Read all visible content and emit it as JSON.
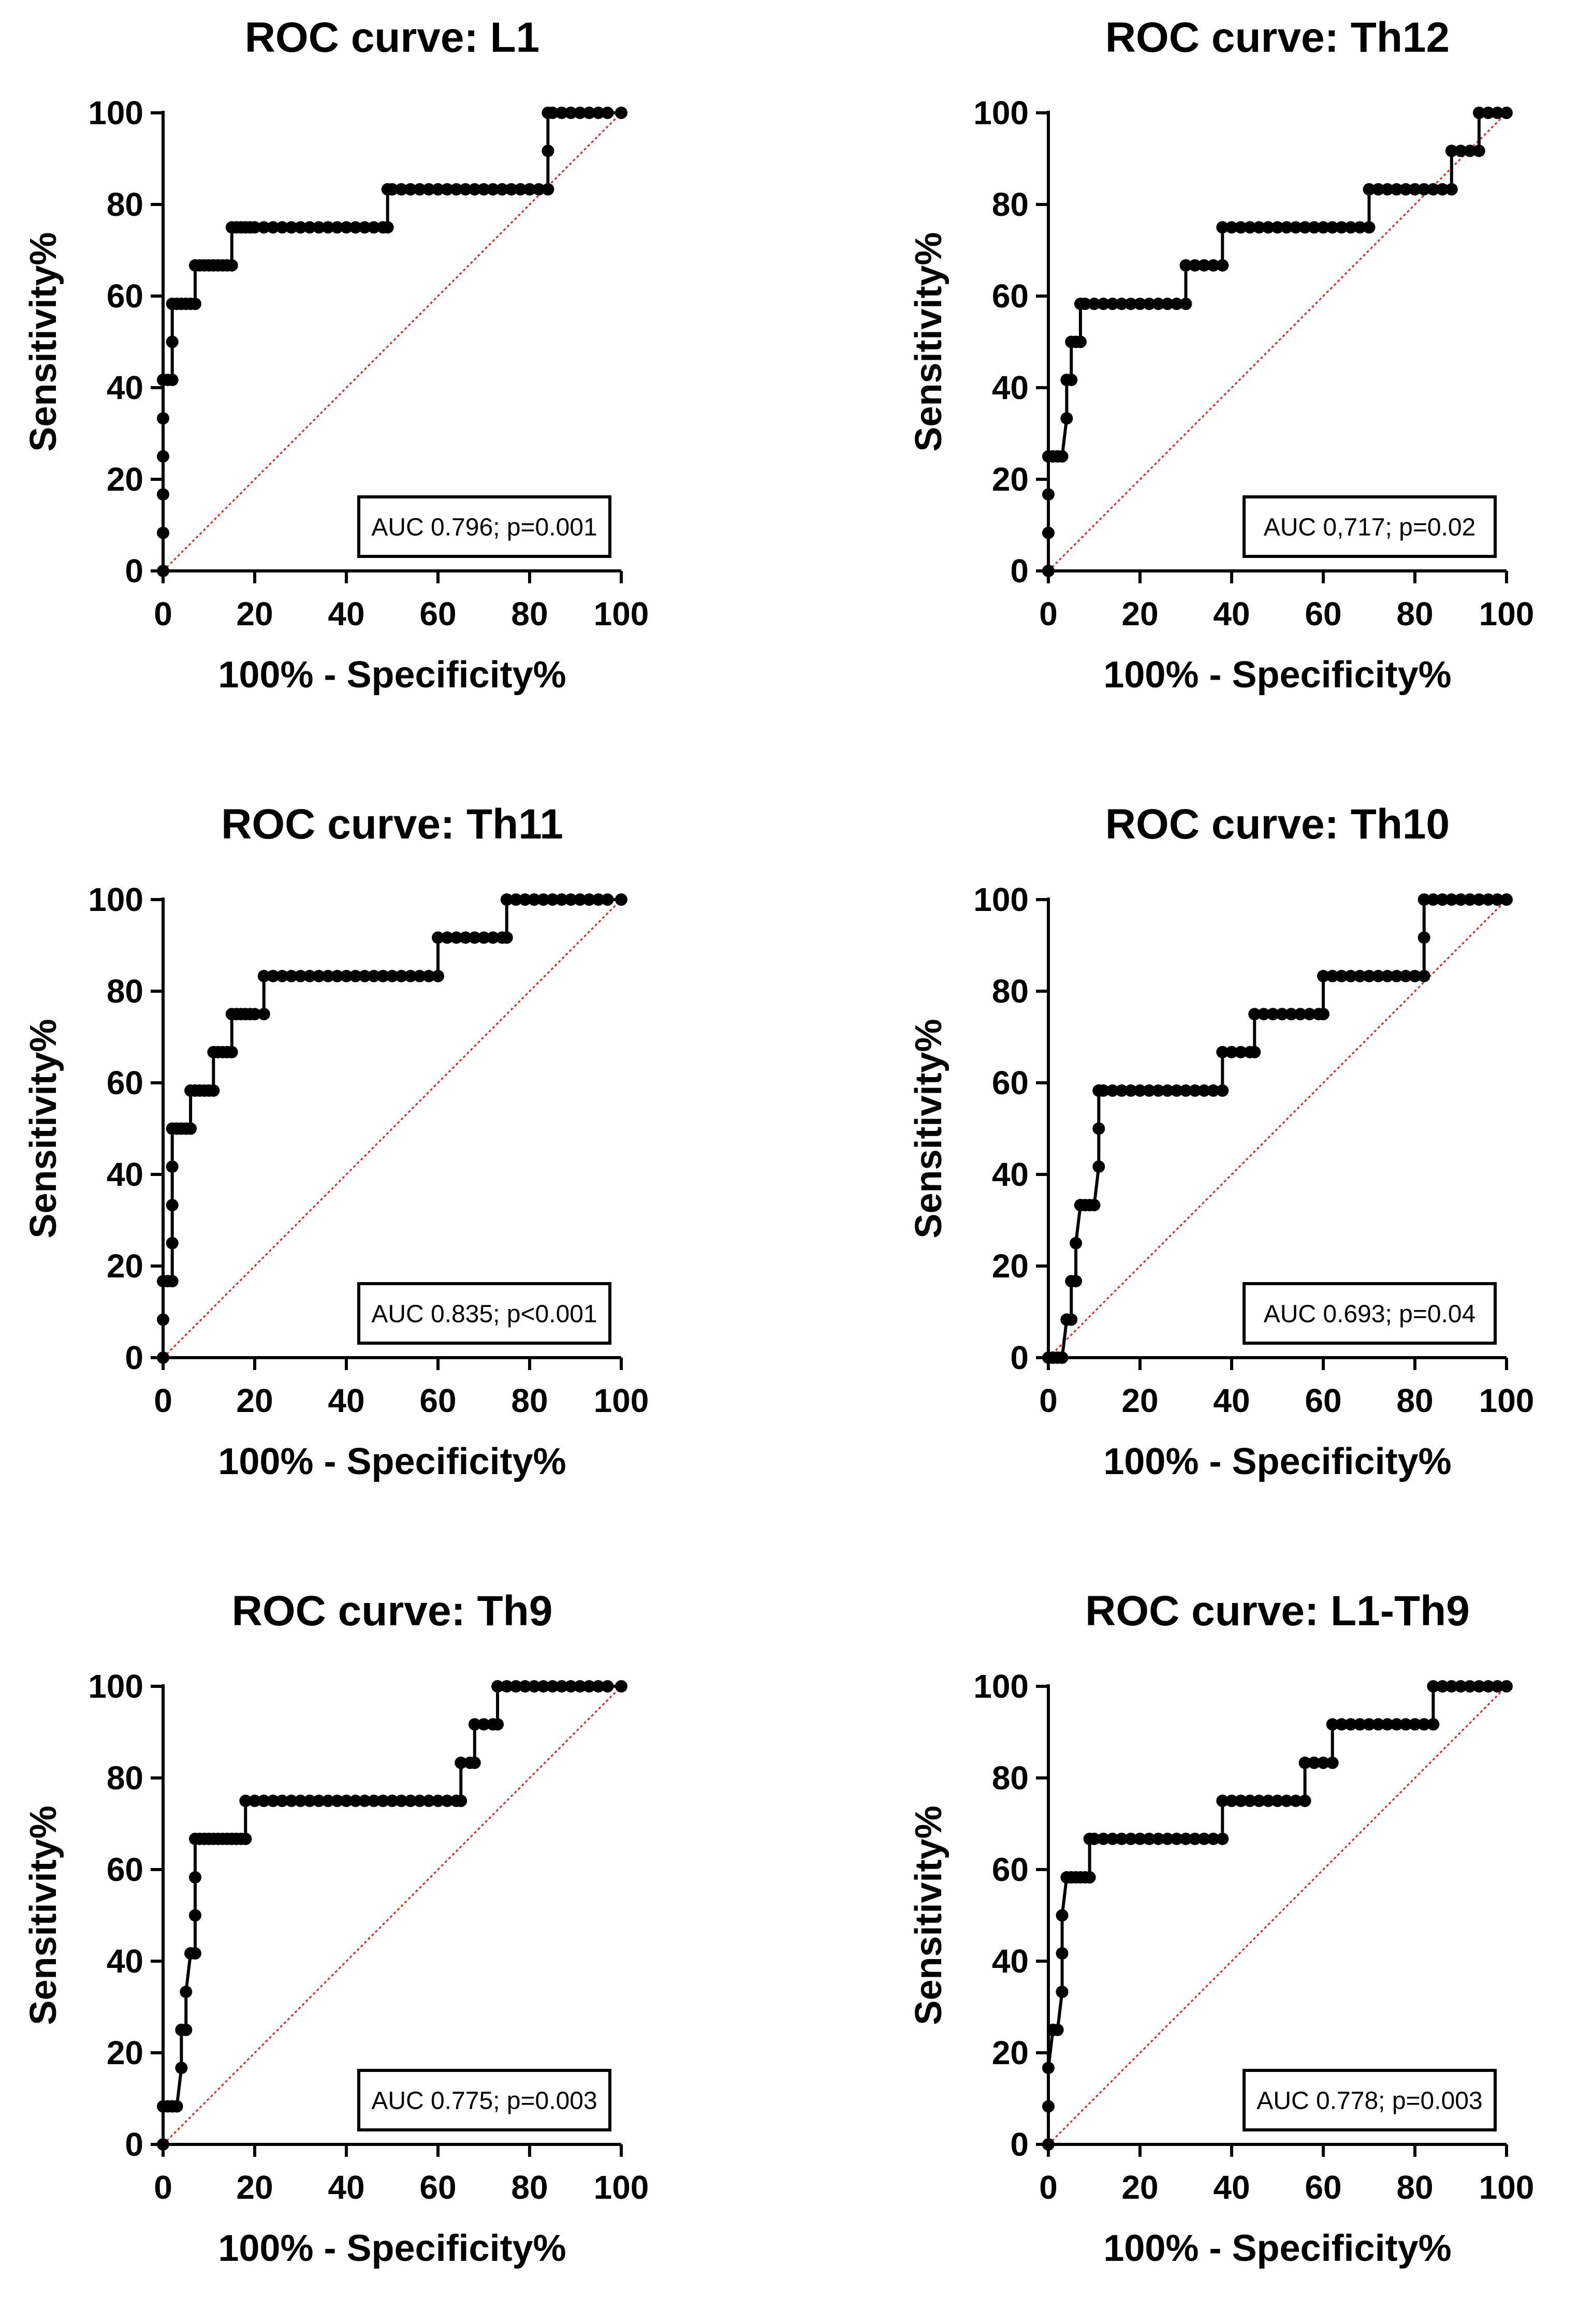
{
  "chart_data": [
    {
      "type": "line",
      "title": "ROC curve: L1",
      "xlabel": "100% - Specificity%",
      "ylabel": "Sensitivity%",
      "xlim": [
        0,
        100
      ],
      "ylim": [
        0,
        100
      ],
      "xticks": [
        "0",
        "20",
        "40",
        "60",
        "80",
        "100"
      ],
      "yticks": [
        "0",
        "20",
        "40",
        "60",
        "80",
        "100"
      ],
      "annotation": "AUC 0.796; p=0.001",
      "reference_line": [
        [
          0,
          0
        ],
        [
          100,
          100
        ]
      ],
      "series": [
        {
          "name": "ROC",
          "x": [
            0,
            0,
            0,
            0,
            0,
            0,
            1,
            2,
            2,
            2,
            3,
            4,
            5,
            6,
            7,
            7,
            8,
            9,
            10,
            11,
            12,
            13,
            14,
            15,
            15,
            16,
            17,
            18,
            19,
            20,
            22,
            24,
            26,
            28,
            30,
            32,
            34,
            36,
            38,
            40,
            42,
            44,
            46,
            48,
            49,
            49,
            50,
            52,
            54,
            56,
            58,
            60,
            62,
            64,
            66,
            68,
            70,
            72,
            74,
            76,
            78,
            80,
            82,
            84,
            84,
            84,
            85,
            87,
            89,
            91,
            93,
            95,
            97,
            100
          ],
          "y": [
            0,
            8.3,
            16.7,
            25,
            33.3,
            41.7,
            41.7,
            41.7,
            50,
            58.3,
            58.3,
            58.3,
            58.3,
            58.3,
            58.3,
            66.7,
            66.7,
            66.7,
            66.7,
            66.7,
            66.7,
            66.7,
            66.7,
            66.7,
            75,
            75,
            75,
            75,
            75,
            75,
            75,
            75,
            75,
            75,
            75,
            75,
            75,
            75,
            75,
            75,
            75,
            75,
            75,
            75,
            75,
            83.3,
            83.3,
            83.3,
            83.3,
            83.3,
            83.3,
            83.3,
            83.3,
            83.3,
            83.3,
            83.3,
            83.3,
            83.3,
            83.3,
            83.3,
            83.3,
            83.3,
            83.3,
            83.3,
            91.7,
            100,
            100,
            100,
            100,
            100,
            100,
            100,
            100,
            100
          ]
        }
      ]
    },
    {
      "type": "line",
      "title": "ROC curve: Th12",
      "xlabel": "100% - Specificity%",
      "ylabel": "Sensitivity%",
      "xlim": [
        0,
        100
      ],
      "ylim": [
        0,
        100
      ],
      "xticks": [
        "0",
        "20",
        "40",
        "60",
        "80",
        "100"
      ],
      "yticks": [
        "0",
        "20",
        "40",
        "60",
        "80",
        "100"
      ],
      "annotation": "AUC 0,717; p=0.02",
      "reference_line": [
        [
          0,
          0
        ],
        [
          100,
          100
        ]
      ],
      "series": [
        {
          "name": "ROC",
          "x": [
            0,
            0,
            0,
            0,
            1,
            2,
            3,
            4,
            4,
            4,
            5,
            5,
            6,
            7,
            7,
            8,
            10,
            12,
            14,
            16,
            18,
            20,
            22,
            24,
            26,
            28,
            30,
            30,
            32,
            34,
            36,
            38,
            38,
            40,
            42,
            44,
            46,
            48,
            50,
            52,
            54,
            56,
            58,
            60,
            62,
            64,
            66,
            68,
            70,
            70,
            72,
            74,
            76,
            78,
            80,
            82,
            84,
            86,
            88,
            88,
            90,
            92,
            94,
            94,
            96,
            98,
            100
          ],
          "y": [
            0,
            8.3,
            16.7,
            25,
            25,
            25,
            25,
            33.3,
            41.7,
            41.7,
            41.7,
            50,
            50,
            50,
            58.3,
            58.3,
            58.3,
            58.3,
            58.3,
            58.3,
            58.3,
            58.3,
            58.3,
            58.3,
            58.3,
            58.3,
            58.3,
            66.7,
            66.7,
            66.7,
            66.7,
            66.7,
            75,
            75,
            75,
            75,
            75,
            75,
            75,
            75,
            75,
            75,
            75,
            75,
            75,
            75,
            75,
            75,
            75,
            83.3,
            83.3,
            83.3,
            83.3,
            83.3,
            83.3,
            83.3,
            83.3,
            83.3,
            83.3,
            91.7,
            91.7,
            91.7,
            91.7,
            100,
            100,
            100,
            100
          ]
        }
      ]
    },
    {
      "type": "line",
      "title": "ROC curve: Th11",
      "xlabel": "100% - Specificity%",
      "ylabel": "Sensitivity%",
      "xlim": [
        0,
        100
      ],
      "ylim": [
        0,
        100
      ],
      "xticks": [
        "0",
        "20",
        "40",
        "60",
        "80",
        "100"
      ],
      "yticks": [
        "0",
        "20",
        "40",
        "60",
        "80",
        "100"
      ],
      "annotation": "AUC 0.835; p<0.001",
      "reference_line": [
        [
          0,
          0
        ],
        [
          100,
          100
        ]
      ],
      "series": [
        {
          "name": "ROC",
          "x": [
            0,
            0,
            0,
            1,
            2,
            2,
            2,
            2,
            2,
            3,
            4,
            5,
            6,
            6,
            7,
            8,
            9,
            10,
            11,
            11,
            12,
            13,
            14,
            15,
            15,
            16,
            17,
            18,
            19,
            20,
            22,
            22,
            24,
            26,
            28,
            30,
            32,
            34,
            36,
            38,
            40,
            42,
            44,
            46,
            48,
            50,
            52,
            54,
            56,
            58,
            60,
            60,
            62,
            64,
            66,
            68,
            70,
            72,
            74,
            75,
            75,
            77,
            79,
            81,
            83,
            85,
            87,
            89,
            91,
            93,
            95,
            97,
            100
          ],
          "y": [
            0,
            8.3,
            16.7,
            16.7,
            16.7,
            25,
            33.3,
            41.7,
            50,
            50,
            50,
            50,
            50,
            58.3,
            58.3,
            58.3,
            58.3,
            58.3,
            58.3,
            66.7,
            66.7,
            66.7,
            66.7,
            66.7,
            75,
            75,
            75,
            75,
            75,
            75,
            75,
            83.3,
            83.3,
            83.3,
            83.3,
            83.3,
            83.3,
            83.3,
            83.3,
            83.3,
            83.3,
            83.3,
            83.3,
            83.3,
            83.3,
            83.3,
            83.3,
            83.3,
            83.3,
            83.3,
            83.3,
            91.7,
            91.7,
            91.7,
            91.7,
            91.7,
            91.7,
            91.7,
            91.7,
            91.7,
            100,
            100,
            100,
            100,
            100,
            100,
            100,
            100,
            100,
            100,
            100,
            100,
            100
          ]
        }
      ]
    },
    {
      "type": "line",
      "title": "ROC curve: Th10",
      "xlabel": "100% - Specificity%",
      "ylabel": "Sensitivity%",
      "xlim": [
        0,
        100
      ],
      "ylim": [
        0,
        100
      ],
      "xticks": [
        "0",
        "20",
        "40",
        "60",
        "80",
        "100"
      ],
      "yticks": [
        "0",
        "20",
        "40",
        "60",
        "80",
        "100"
      ],
      "annotation": "AUC 0.693; p=0.04",
      "reference_line": [
        [
          0,
          0
        ],
        [
          100,
          100
        ]
      ],
      "series": [
        {
          "name": "ROC",
          "x": [
            0,
            1,
            2,
            3,
            4,
            4,
            5,
            5,
            6,
            6,
            7,
            7,
            8,
            9,
            10,
            11,
            11,
            11,
            11,
            12,
            14,
            16,
            18,
            20,
            22,
            24,
            26,
            28,
            30,
            32,
            34,
            36,
            38,
            38,
            40,
            42,
            44,
            45,
            45,
            47,
            49,
            51,
            53,
            55,
            57,
            59,
            60,
            60,
            62,
            64,
            66,
            68,
            70,
            72,
            74,
            76,
            78,
            80,
            82,
            82,
            82,
            84,
            86,
            88,
            90,
            92,
            94,
            96,
            98,
            100
          ],
          "y": [
            0,
            0,
            0,
            0,
            8.3,
            8.3,
            8.3,
            16.7,
            16.7,
            25,
            33.3,
            33.3,
            33.3,
            33.3,
            33.3,
            41.7,
            50,
            58.3,
            58.3,
            58.3,
            58.3,
            58.3,
            58.3,
            58.3,
            58.3,
            58.3,
            58.3,
            58.3,
            58.3,
            58.3,
            58.3,
            58.3,
            58.3,
            66.7,
            66.7,
            66.7,
            66.7,
            66.7,
            75,
            75,
            75,
            75,
            75,
            75,
            75,
            75,
            75,
            83.3,
            83.3,
            83.3,
            83.3,
            83.3,
            83.3,
            83.3,
            83.3,
            83.3,
            83.3,
            83.3,
            83.3,
            91.7,
            100,
            100,
            100,
            100,
            100,
            100,
            100,
            100,
            100,
            100
          ]
        }
      ]
    },
    {
      "type": "line",
      "title": "ROC curve: Th9",
      "xlabel": "100% - Specificity%",
      "ylabel": "Sensitivity%",
      "xlim": [
        0,
        100
      ],
      "ylim": [
        0,
        100
      ],
      "xticks": [
        "0",
        "20",
        "40",
        "60",
        "80",
        "100"
      ],
      "yticks": [
        "0",
        "20",
        "40",
        "60",
        "80",
        "100"
      ],
      "annotation": "AUC 0.775; p=0.003",
      "reference_line": [
        [
          0,
          0
        ],
        [
          100,
          100
        ]
      ],
      "series": [
        {
          "name": "ROC",
          "x": [
            0,
            0,
            1,
            2,
            3,
            4,
            4,
            4,
            5,
            5,
            6,
            6,
            7,
            7,
            7,
            7,
            8,
            9,
            10,
            11,
            12,
            13,
            14,
            15,
            16,
            17,
            18,
            18,
            20,
            22,
            24,
            26,
            28,
            30,
            32,
            34,
            36,
            38,
            40,
            42,
            44,
            46,
            48,
            50,
            52,
            54,
            56,
            58,
            60,
            62,
            64,
            65,
            65,
            67,
            68,
            68,
            70,
            72,
            73,
            73,
            75,
            77,
            79,
            81,
            83,
            85,
            87,
            89,
            91,
            93,
            95,
            97,
            100
          ],
          "y": [
            0,
            8.3,
            8.3,
            8.3,
            8.3,
            16.7,
            25,
            25,
            25,
            33.3,
            41.7,
            41.7,
            41.7,
            50,
            58.3,
            66.7,
            66.7,
            66.7,
            66.7,
            66.7,
            66.7,
            66.7,
            66.7,
            66.7,
            66.7,
            66.7,
            66.7,
            75,
            75,
            75,
            75,
            75,
            75,
            75,
            75,
            75,
            75,
            75,
            75,
            75,
            75,
            75,
            75,
            75,
            75,
            75,
            75,
            75,
            75,
            75,
            75,
            75,
            83.3,
            83.3,
            83.3,
            91.7,
            91.7,
            91.7,
            91.7,
            100,
            100,
            100,
            100,
            100,
            100,
            100,
            100,
            100,
            100,
            100,
            100,
            100,
            100
          ]
        }
      ]
    },
    {
      "type": "line",
      "title": "ROC curve: L1-Th9",
      "xlabel": "100% - Specificity%",
      "ylabel": "Sensitivity%",
      "xlim": [
        0,
        100
      ],
      "ylim": [
        0,
        100
      ],
      "xticks": [
        "0",
        "20",
        "40",
        "60",
        "80",
        "100"
      ],
      "yticks": [
        "0",
        "20",
        "40",
        "60",
        "80",
        "100"
      ],
      "annotation": "AUC 0.778; p=0.003",
      "reference_line": [
        [
          0,
          0
        ],
        [
          100,
          100
        ]
      ],
      "series": [
        {
          "name": "ROC",
          "x": [
            0,
            0,
            0,
            1,
            1,
            2,
            3,
            3,
            3,
            3,
            4,
            5,
            6,
            7,
            8,
            9,
            9,
            10,
            12,
            14,
            16,
            18,
            20,
            22,
            24,
            26,
            28,
            30,
            32,
            34,
            36,
            38,
            38,
            40,
            42,
            44,
            46,
            48,
            50,
            52,
            54,
            56,
            56,
            58,
            60,
            62,
            62,
            64,
            66,
            68,
            70,
            72,
            74,
            76,
            78,
            80,
            82,
            84,
            84,
            86,
            88,
            90,
            92,
            94,
            96,
            98,
            100
          ],
          "y": [
            0,
            8.3,
            16.7,
            25,
            25,
            25,
            33.3,
            33.3,
            41.7,
            50,
            58.3,
            58.3,
            58.3,
            58.3,
            58.3,
            58.3,
            66.7,
            66.7,
            66.7,
            66.7,
            66.7,
            66.7,
            66.7,
            66.7,
            66.7,
            66.7,
            66.7,
            66.7,
            66.7,
            66.7,
            66.7,
            66.7,
            75,
            75,
            75,
            75,
            75,
            75,
            75,
            75,
            75,
            75,
            83.3,
            83.3,
            83.3,
            83.3,
            91.7,
            91.7,
            91.7,
            91.7,
            91.7,
            91.7,
            91.7,
            91.7,
            91.7,
            91.7,
            91.7,
            91.7,
            100,
            100,
            100,
            100,
            100,
            100,
            100,
            100,
            100
          ]
        }
      ]
    }
  ]
}
